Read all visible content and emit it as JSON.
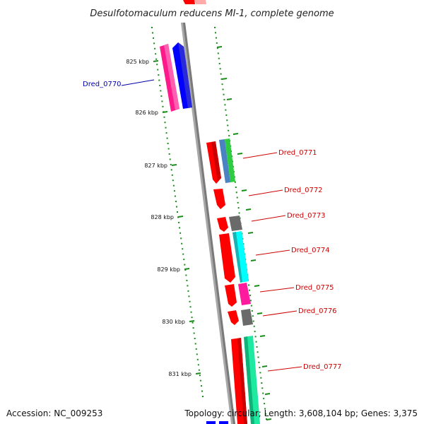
{
  "title": "Desulfotomaculum reducens MI-1, complete genome",
  "footer": {
    "accession": "Accession: NC_009253",
    "topology": "Topology: circular; Length: 3,608,104 bp; Genes: 3,375"
  },
  "colors": {
    "backbone": "#a0a0a0",
    "tick": "#1a8c1a",
    "label_forward_gene": "#cc0000",
    "label_reverse_gene": "#0000aa"
  },
  "ticks": [
    {
      "label": "825 kbp"
    },
    {
      "label": "826 kbp"
    },
    {
      "label": "827 kbp"
    },
    {
      "label": "828 kbp"
    },
    {
      "label": "829 kbp"
    },
    {
      "label": "830 kbp"
    },
    {
      "label": "831 kbp"
    }
  ],
  "genes": [
    {
      "label": "Dred_0770",
      "strand": "-"
    },
    {
      "label": "Dred_0771",
      "strand": "+"
    },
    {
      "label": "Dred_0772",
      "strand": "+"
    },
    {
      "label": "Dred_0773",
      "strand": "+"
    },
    {
      "label": "Dred_0774",
      "strand": "+"
    },
    {
      "label": "Dred_0775",
      "strand": "+"
    },
    {
      "label": "Dred_0776",
      "strand": "+"
    },
    {
      "label": "Dred_0777",
      "strand": "+"
    }
  ]
}
